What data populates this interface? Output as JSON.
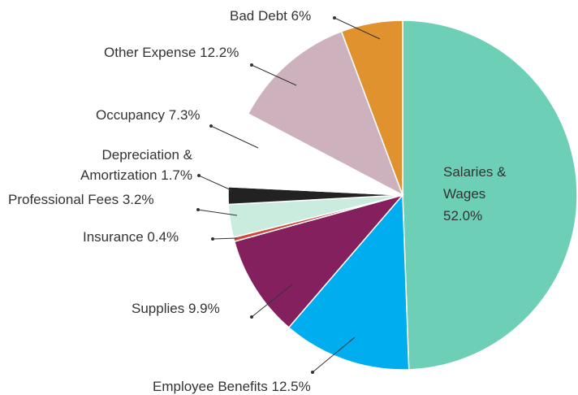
{
  "chart_data": {
    "type": "pie",
    "categories": [
      "Salaries & Wages",
      "Employee Benefits",
      "Supplies",
      "Insurance",
      "Professional Fees",
      "Depreciation & Amortization",
      "Occupancy",
      "Other Expense",
      "Bad Debt"
    ],
    "values": [
      52.0,
      12.5,
      9.9,
      0.4,
      3.2,
      1.7,
      7.3,
      12.2,
      6
    ],
    "value_labels": [
      "52.0%",
      "12.5%",
      "9.9%",
      "0.4%",
      "3.2%",
      "1.7%",
      "7.3%",
      "12.2%",
      "6%"
    ],
    "colors": [
      "#6dcfb6",
      "#00aeef",
      "#85205e",
      "#d04a3a",
      "#c9ecdf",
      "#222222",
      "#ffffff",
      "#cdb1bd",
      "#e0922f"
    ]
  }
}
